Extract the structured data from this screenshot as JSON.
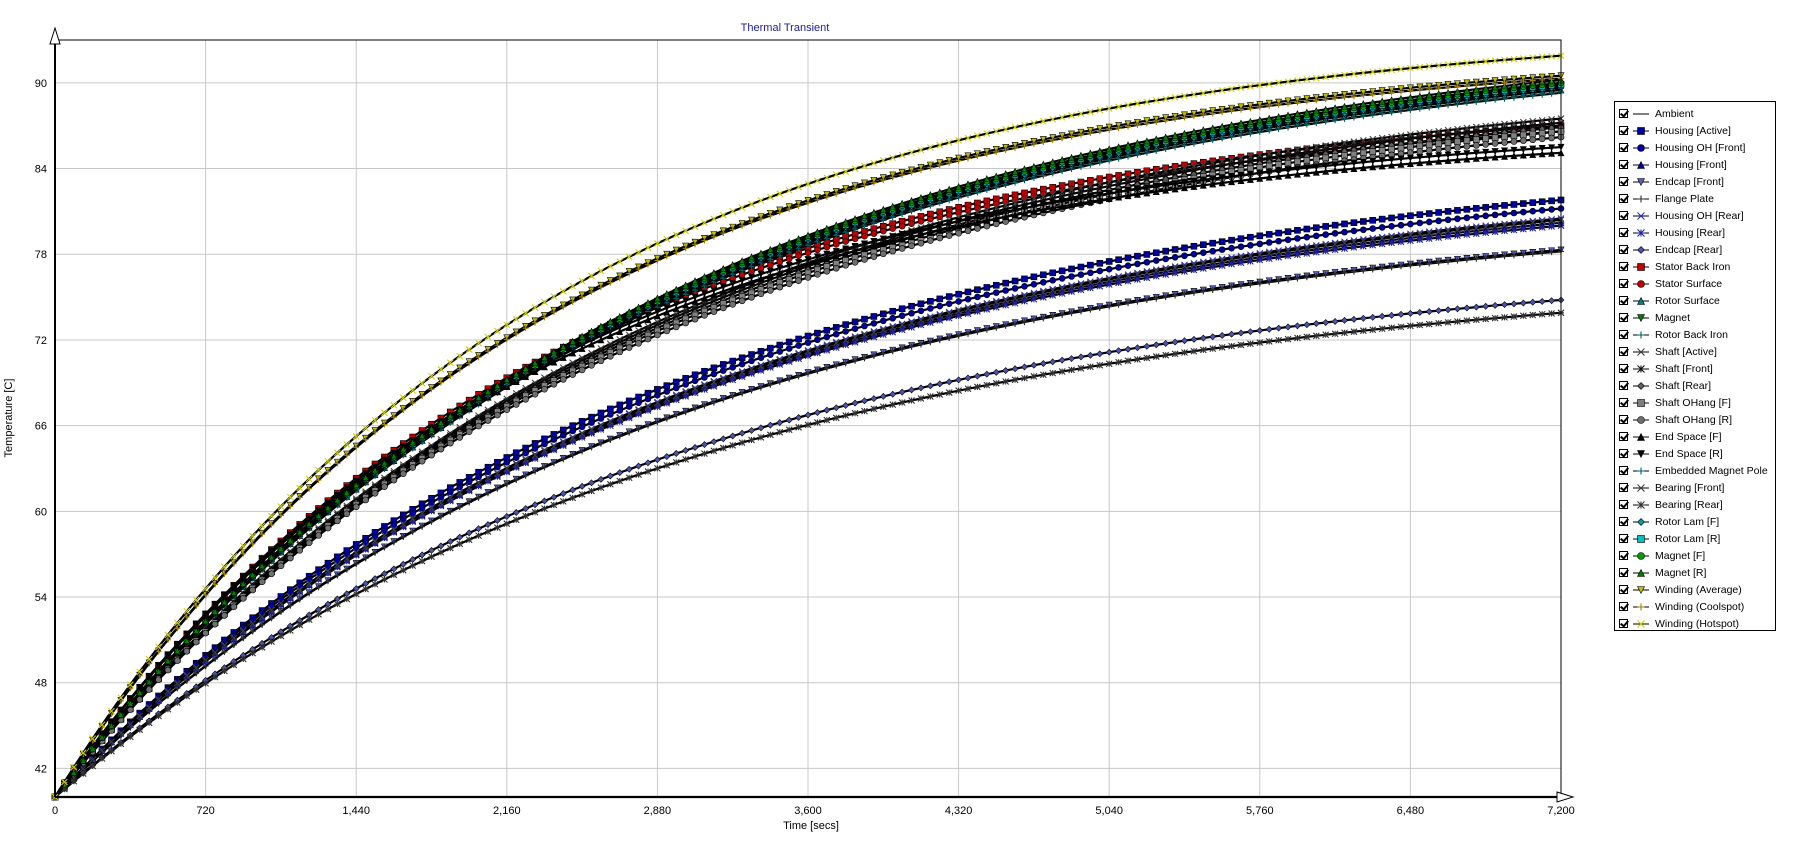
{
  "chart_data": {
    "type": "line",
    "title": "Thermal Transient",
    "xlabel": "Time [secs]",
    "ylabel": "Temperature [C]",
    "xlim": [
      0,
      7200
    ],
    "ylim": [
      40,
      93
    ],
    "xticks": [
      "0",
      "720",
      "1,440",
      "2,160",
      "2,880",
      "3,600",
      "4,320",
      "5,040",
      "5,760",
      "6,480",
      "7,200"
    ],
    "yticks": [
      "42",
      "48",
      "54",
      "60",
      "66",
      "72",
      "78",
      "84",
      "90"
    ],
    "grid": true,
    "legend_position": "right",
    "series": [
      {
        "name": "Ambient",
        "marker": "line",
        "color": "#000000",
        "final": 40.0,
        "tau": 3000
      },
      {
        "name": "Housing [Active]",
        "marker": "square",
        "color": "#0000a0",
        "final": 81.8,
        "tau": 2950
      },
      {
        "name": "Housing OH [Front]",
        "marker": "circle",
        "color": "#0000a0",
        "final": 81.2,
        "tau": 2950
      },
      {
        "name": "Housing [Front]",
        "marker": "triangle",
        "color": "#0000a0",
        "final": 80.2,
        "tau": 2950
      },
      {
        "name": "Endcap [Front]",
        "marker": "triangle-down",
        "color": "#5560c0",
        "final": 78.3,
        "tau": 2900
      },
      {
        "name": "Flange Plate",
        "marker": "plus",
        "color": "#303030",
        "final": 78.2,
        "tau": 2900
      },
      {
        "name": "Housing OH [Rear]",
        "marker": "x",
        "color": "#3030c0",
        "final": 80.5,
        "tau": 2950
      },
      {
        "name": "Housing [Rear]",
        "marker": "star",
        "color": "#2020a0",
        "final": 80.0,
        "tau": 2950
      },
      {
        "name": "Endcap [Rear]",
        "marker": "diamond",
        "color": "#4a55b0",
        "final": 74.8,
        "tau": 3000
      },
      {
        "name": "Stator Back Iron",
        "marker": "square",
        "color": "#c00000",
        "final": 87.0,
        "tau": 2400
      },
      {
        "name": "Stator Surface",
        "marker": "circle",
        "color": "#c00000",
        "final": 86.6,
        "tau": 2400
      },
      {
        "name": "Rotor Surface",
        "marker": "triangle",
        "color": "#008080",
        "final": 89.5,
        "tau": 2800
      },
      {
        "name": "Magnet",
        "marker": "triangle-down",
        "color": "#008000",
        "final": 89.8,
        "tau": 2800
      },
      {
        "name": "Rotor Back Iron",
        "marker": "plus",
        "color": "#006060",
        "final": 89.3,
        "tau": 2800
      },
      {
        "name": "Shaft [Active]",
        "marker": "x",
        "color": "#404040",
        "final": 87.5,
        "tau": 2750
      },
      {
        "name": "Shaft [Front]",
        "marker": "star",
        "color": "#101010",
        "final": 87.2,
        "tau": 2750
      },
      {
        "name": "Shaft [Rear]",
        "marker": "diamond",
        "color": "#606060",
        "final": 86.9,
        "tau": 2750
      },
      {
        "name": "Shaft OHang [F]",
        "marker": "square",
        "color": "#808080",
        "final": 86.6,
        "tau": 2750
      },
      {
        "name": "Shaft OHang [R]",
        "marker": "circle",
        "color": "#707070",
        "final": 86.2,
        "tau": 2750
      },
      {
        "name": "End Space [F]",
        "marker": "triangle",
        "color": "#000000",
        "final": 85.1,
        "tau": 2300
      },
      {
        "name": "End Space [R]",
        "marker": "triangle-down",
        "color": "#000000",
        "final": 85.5,
        "tau": 2300
      },
      {
        "name": "Embedded Magnet Pole",
        "marker": "plus",
        "color": "#006090",
        "final": 89.6,
        "tau": 2800
      },
      {
        "name": "Bearing [Front]",
        "marker": "x",
        "color": "#404040",
        "final": 80.4,
        "tau": 2950
      },
      {
        "name": "Bearing [Rear]",
        "marker": "star",
        "color": "#303030",
        "final": 73.9,
        "tau": 3000
      },
      {
        "name": "Rotor Lam [F]",
        "marker": "diamond",
        "color": "#00a0a0",
        "final": 89.7,
        "tau": 2800
      },
      {
        "name": "Rotor Lam [R]",
        "marker": "square",
        "color": "#00c0c0",
        "final": 89.9,
        "tau": 2800
      },
      {
        "name": "Magnet [F]",
        "marker": "circle",
        "color": "#00a000",
        "final": 90.0,
        "tau": 2800
      },
      {
        "name": "Magnet [R]",
        "marker": "triangle",
        "color": "#008000",
        "final": 90.2,
        "tau": 2800
      },
      {
        "name": "Winding (Average)",
        "marker": "triangle-down",
        "color": "#c0c000",
        "final": 90.5,
        "tau": 2300
      },
      {
        "name": "Winding (Coolspot)",
        "marker": "plus",
        "color": "#a08000",
        "final": 90.3,
        "tau": 2300
      },
      {
        "name": "Winding (Hotspot)",
        "marker": "x",
        "color": "#d0d000",
        "final": 91.9,
        "tau": 2300
      }
    ]
  }
}
